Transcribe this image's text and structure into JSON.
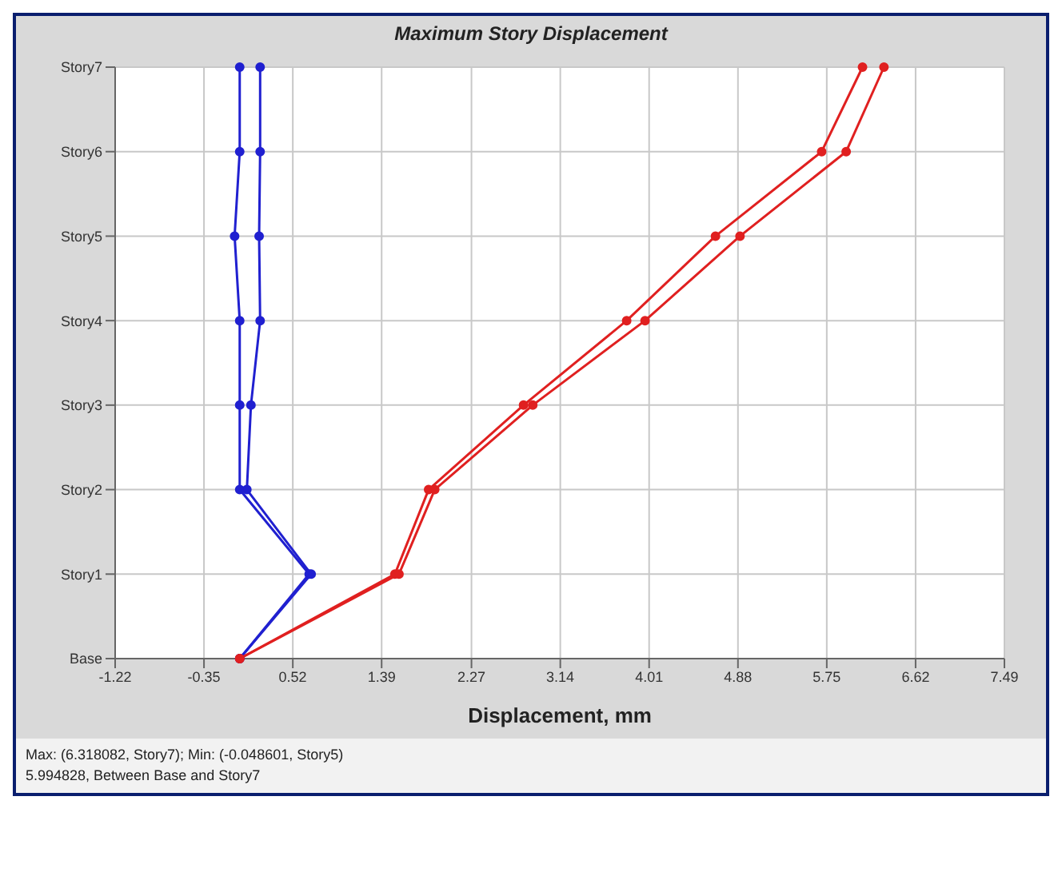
{
  "chart_data": {
    "type": "line",
    "orientation": "horizontal",
    "title": "Maximum Story Displacement",
    "xlabel": "Displacement, mm",
    "categories": [
      "Story7",
      "Story6",
      "Story5",
      "Story4",
      "Story3",
      "Story2",
      "Story1",
      "Base"
    ],
    "series": [
      {
        "color": "#2020d0",
        "values": [
          0.0,
          0.0,
          -0.05,
          0.0,
          0.0,
          0.0,
          0.68,
          0.0
        ]
      },
      {
        "color": "#2020d0",
        "values": [
          0.2,
          0.2,
          0.19,
          0.2,
          0.11,
          0.07,
          0.7,
          0.0
        ]
      },
      {
        "color": "#e02020",
        "values": [
          6.1,
          5.7,
          4.66,
          3.79,
          2.78,
          1.85,
          1.52,
          0.0
        ]
      },
      {
        "color": "#e02020",
        "values": [
          6.31,
          5.94,
          4.9,
          3.97,
          2.87,
          1.91,
          1.56,
          0.0
        ]
      }
    ],
    "xlim": [
      -1.22,
      7.49
    ],
    "xticks": [
      -1.22,
      -0.35,
      0.52,
      1.39,
      2.27,
      3.14,
      4.01,
      4.88,
      5.75,
      6.62,
      7.49
    ],
    "grid": true,
    "marker": "circle",
    "line_style": "solid",
    "annotations": [
      "Max: (6.318082, Story7); Min: (-0.048601, Story5)",
      "5.994828, Between Base and Story7"
    ]
  }
}
